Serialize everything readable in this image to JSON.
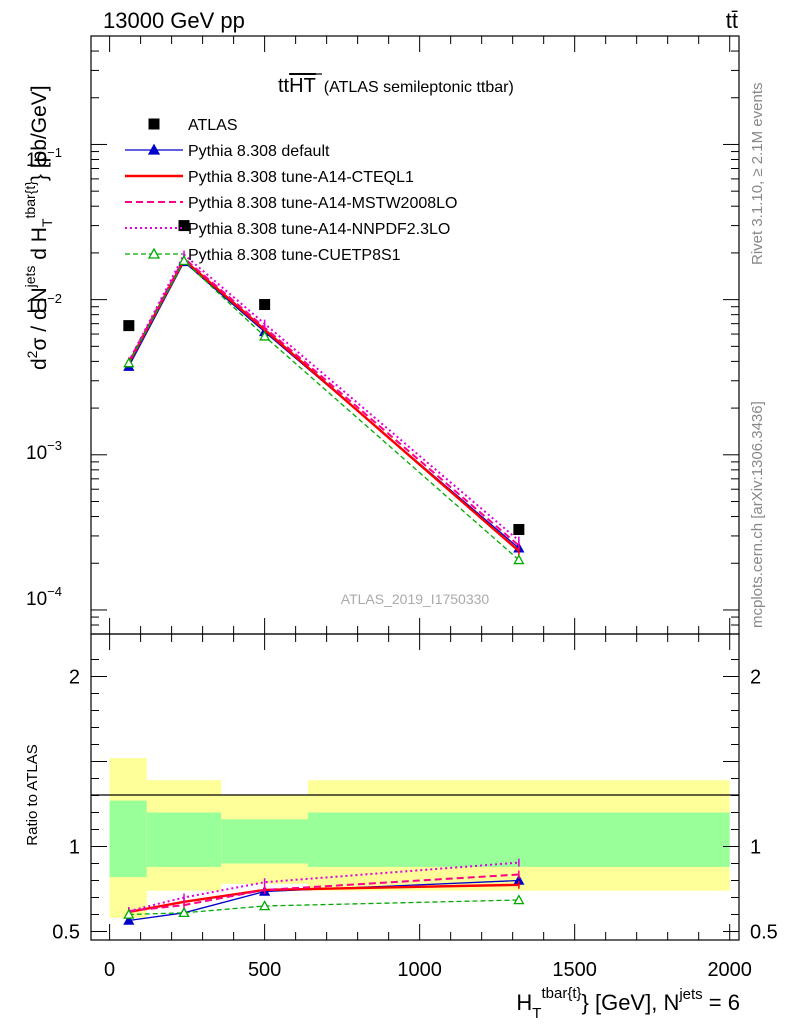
{
  "header": {
    "left": "13000 GeV pp",
    "right": "tt̄"
  },
  "right_labels": {
    "rivet": "Rivet 3.1.10, ≥ 2.1M events",
    "mcplots": "mcplots.cern.ch [arXiv:1306.3436]"
  },
  "watermark": "ATLAS_2019_I1750330",
  "colors": {
    "data": "#000000",
    "default": "#0000cc",
    "cteql1": "#ff0000",
    "mstw": "#ff0088",
    "nnpdf": "#dd00dd",
    "cuetp8s1": "#00aa00",
    "band_inner": "#99ff99",
    "band_outer": "#ffff99"
  },
  "chart_data": [
    {
      "type": "line",
      "title_main": "tt",
      "title_overline": "HT",
      "title_sub": "(ATLAS semileptonic ttbar)",
      "ylabel": "d²σ / d N^jets d H_T^tbar{t} [pb/GeV]",
      "ylabel_parts": {
        "d1": "d",
        "sup2": "2",
        "sigma": "σ / d N",
        "jets": "jets",
        "dH": " d H",
        "T": "T",
        "tbar": "tbar{t}",
        "unit": "} [pb/GeV]"
      },
      "yscale": "log",
      "ylim": [
        7e-05,
        0.5
      ],
      "xlim": [
        -60,
        2030
      ],
      "y_tick_labels": [
        {
          "value": 0.1,
          "base": "10",
          "exp": "−1"
        },
        {
          "value": 0.01,
          "base": "10",
          "exp": "−2"
        },
        {
          "value": 0.001,
          "base": "10",
          "exp": "−3"
        },
        {
          "value": 0.0001,
          "base": "10",
          "exp": "−4"
        }
      ],
      "x": [
        62,
        240,
        500,
        1320
      ],
      "series": [
        {
          "name": "ATLAS",
          "key": "data",
          "style": "square",
          "values": [
            0.0068,
            0.03,
            0.0093,
            0.00033
          ]
        },
        {
          "name": "Pythia 8.308 default",
          "key": "default",
          "style": "solid-triangle",
          "values": [
            0.0037,
            0.0175,
            0.0062,
            0.00025
          ]
        },
        {
          "name": "Pythia 8.308 tune-A14-CTEQL1",
          "key": "cteql1",
          "style": "solid-thick",
          "values": [
            0.0039,
            0.018,
            0.0064,
            0.00024
          ]
        },
        {
          "name": "Pythia 8.308 tune-A14-MSTW2008LO",
          "key": "mstw",
          "style": "dashed",
          "values": [
            0.004,
            0.0185,
            0.0066,
            0.00026
          ]
        },
        {
          "name": "Pythia 8.308 tune-A14-NNPDF2.3LO",
          "key": "nnpdf",
          "style": "dotted",
          "values": [
            0.004,
            0.0195,
            0.007,
            0.00028
          ]
        },
        {
          "name": "Pythia 8.308 tune-CUETP8S1",
          "key": "cuetp8s1",
          "style": "dashed-open-triangle",
          "values": [
            0.0039,
            0.0178,
            0.0058,
            0.00021
          ]
        }
      ]
    },
    {
      "type": "line",
      "ylabel": "Ratio to ATLAS",
      "ylim": [
        0.45,
        2.25
      ],
      "y_ticks": [
        0.5,
        1,
        2
      ],
      "y_tick_labels": [
        "0.5",
        "1",
        "2"
      ],
      "xlim": [
        -60,
        2030
      ],
      "x_ticks": [
        0,
        500,
        1000,
        1500,
        2000
      ],
      "x_tick_labels": [
        "0",
        "500",
        "1000",
        "1500",
        "2000"
      ],
      "xlabel_parts": {
        "H": "H",
        "T": "T",
        "tbar": "tbar{t}",
        "mid": "} [GeV], N",
        "jets": "jets",
        "end": " = 6"
      },
      "bands": [
        {
          "x0": 0,
          "x1": 120,
          "inner": [
            0.82,
            1.27
          ],
          "outer": [
            0.58,
            1.52
          ]
        },
        {
          "x0": 120,
          "x1": 360,
          "inner": [
            0.88,
            1.2
          ],
          "outer": [
            0.74,
            1.39
          ]
        },
        {
          "x0": 360,
          "x1": 640,
          "inner": [
            0.9,
            1.16
          ],
          "outer": [
            0.78,
            1.3
          ]
        },
        {
          "x0": 640,
          "x1": 2000,
          "inner": [
            0.88,
            1.2
          ],
          "outer": [
            0.74,
            1.39
          ]
        }
      ],
      "x": [
        62,
        240,
        500,
        1320
      ],
      "series": [
        {
          "name": "Pythia 8.308 default",
          "key": "default",
          "style": "solid-triangle",
          "values": [
            0.565,
            0.61,
            0.735,
            0.8
          ]
        },
        {
          "name": "Pythia 8.308 tune-A14-CTEQL1",
          "key": "cteql1",
          "style": "solid-thick",
          "values": [
            0.615,
            0.675,
            0.745,
            0.775
          ]
        },
        {
          "name": "Pythia 8.308 tune-A14-MSTW2008LO",
          "key": "mstw",
          "style": "dashed",
          "values": [
            0.62,
            0.655,
            0.745,
            0.835
          ]
        },
        {
          "name": "Pythia 8.308 tune-A14-NNPDF2.3LO",
          "key": "nnpdf",
          "style": "dotted",
          "values": [
            0.62,
            0.7,
            0.79,
            0.905
          ]
        },
        {
          "name": "Pythia 8.308 tune-CUETP8S1",
          "key": "cuetp8s1",
          "style": "dashed-open-triangle",
          "values": [
            0.6,
            0.61,
            0.65,
            0.685
          ]
        }
      ]
    }
  ]
}
